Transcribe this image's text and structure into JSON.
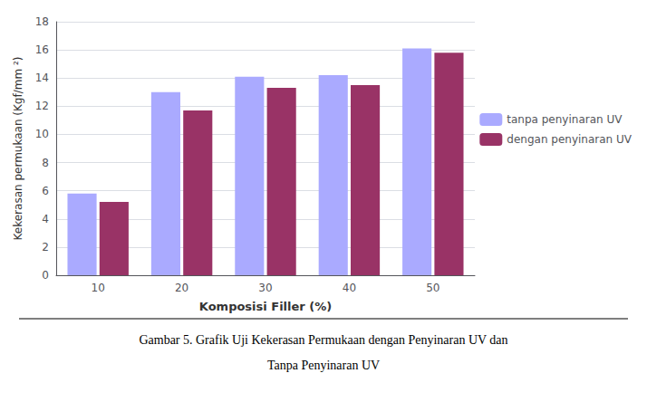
{
  "chart_data": {
    "type": "bar",
    "xlabel": "Komposisi Filler (%)",
    "ylabel": "Kekerasan permukaan (Kgf/mm ²)",
    "categories": [
      "10",
      "20",
      "30",
      "40",
      "50"
    ],
    "series": [
      {
        "name": "tanpa penyinaran UV",
        "color": "#aaaaff",
        "values": [
          5.8,
          13.0,
          14.1,
          14.2,
          16.1
        ]
      },
      {
        "name": "dengan penyinaran UV",
        "color": "#993366",
        "values": [
          5.2,
          11.7,
          13.3,
          13.5,
          15.8
        ]
      }
    ],
    "ylim": [
      0,
      18
    ],
    "yticks": [
      0,
      2,
      4,
      6,
      8,
      10,
      12,
      14,
      16,
      18
    ],
    "grid": true,
    "legend": "right",
    "annotations": [
      "Gambar 5. Grafik Uji Kekerasan Permukaan dengan Penyinaran UV dan",
      "Tanpa Penyinaran UV"
    ]
  }
}
